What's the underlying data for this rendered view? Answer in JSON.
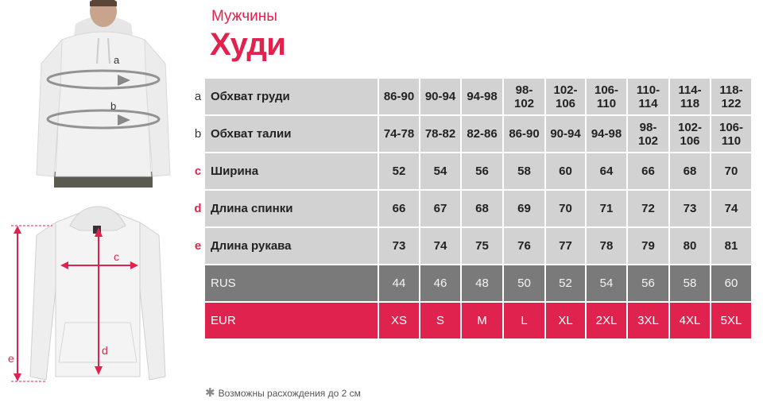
{
  "header": {
    "subtitle": "Мужчины",
    "title": "Худи"
  },
  "figure_labels": {
    "a": "a",
    "b": "b",
    "c": "c",
    "d": "d",
    "e": "e"
  },
  "sizes": [
    "44",
    "46",
    "48",
    "50",
    "52",
    "54",
    "56",
    "58",
    "60"
  ],
  "rows": [
    {
      "letter": "a",
      "label": "Обхват груди",
      "values": [
        "86-90",
        "90-94",
        "94-98",
        "98-\n102",
        "102-\n106",
        "106-\n110",
        "110-\n114",
        "114-\n118",
        "118-\n122"
      ]
    },
    {
      "letter": "b",
      "label": "Обхват талии",
      "values": [
        "74-78",
        "78-82",
        "82-86",
        "86-90",
        "90-94",
        "94-98",
        "98-\n102",
        "102-\n106",
        "106-\n110"
      ]
    },
    {
      "letter": "c",
      "label": "Ширина",
      "values": [
        "52",
        "54",
        "56",
        "58",
        "60",
        "64",
        "66",
        "68",
        "70"
      ]
    },
    {
      "letter": "d",
      "label": "Длина  спинки",
      "values": [
        "66",
        "67",
        "68",
        "69",
        "70",
        "71",
        "72",
        "73",
        "74"
      ]
    },
    {
      "letter": "e",
      "label": "Длина рукава",
      "values": [
        "73",
        "74",
        "75",
        "76",
        "77",
        "78",
        "79",
        "80",
        "81"
      ]
    }
  ],
  "rus": {
    "label": "RUS",
    "values": [
      "44",
      "46",
      "48",
      "50",
      "52",
      "54",
      "56",
      "58",
      "60"
    ]
  },
  "eur": {
    "label": "EUR",
    "values": [
      "XS",
      "S",
      "M",
      "L",
      "XL",
      "2XL",
      "3XL",
      "4XL",
      "5XL"
    ]
  },
  "note": "Возможны расхождения до 2 см",
  "colors": {
    "accent": "#e0234e",
    "cell": "#d2d2d2",
    "rus_row": "#7a7a7a"
  }
}
